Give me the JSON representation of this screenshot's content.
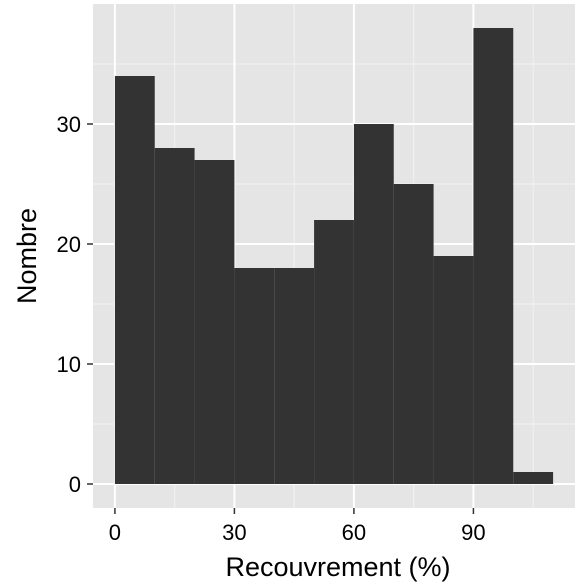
{
  "chart_data": {
    "type": "bar",
    "subtype": "histogram",
    "title": "",
    "xlabel": "Recouvrement (%)",
    "ylabel": "Nombre",
    "bin_width": 10,
    "bins": [
      {
        "start": 0,
        "end": 10,
        "count": 34
      },
      {
        "start": 10,
        "end": 20,
        "count": 28
      },
      {
        "start": 20,
        "end": 30,
        "count": 27
      },
      {
        "start": 30,
        "end": 40,
        "count": 18
      },
      {
        "start": 40,
        "end": 50,
        "count": 18
      },
      {
        "start": 50,
        "end": 60,
        "count": 22
      },
      {
        "start": 60,
        "end": 70,
        "count": 30
      },
      {
        "start": 70,
        "end": 80,
        "count": 25
      },
      {
        "start": 80,
        "end": 90,
        "count": 19
      },
      {
        "start": 90,
        "end": 100,
        "count": 38
      },
      {
        "start": 100,
        "end": 110,
        "count": 1
      }
    ],
    "xlim": [
      -5.5,
      115.5
    ],
    "ylim": [
      -2,
      40
    ],
    "x_ticks": [
      0,
      30,
      60,
      90
    ],
    "x_tick_labels": [
      "0",
      "30",
      "60",
      "90"
    ],
    "y_ticks": [
      0,
      10,
      20,
      30
    ],
    "y_tick_labels": [
      "0",
      "10",
      "20",
      "30"
    ],
    "grid": true,
    "colors": {
      "bar": "#333333",
      "panel_background": "#e5e5e5",
      "grid_major": "#ffffff",
      "grid_minor": "#f2f2f2",
      "tick": "#333333"
    }
  }
}
